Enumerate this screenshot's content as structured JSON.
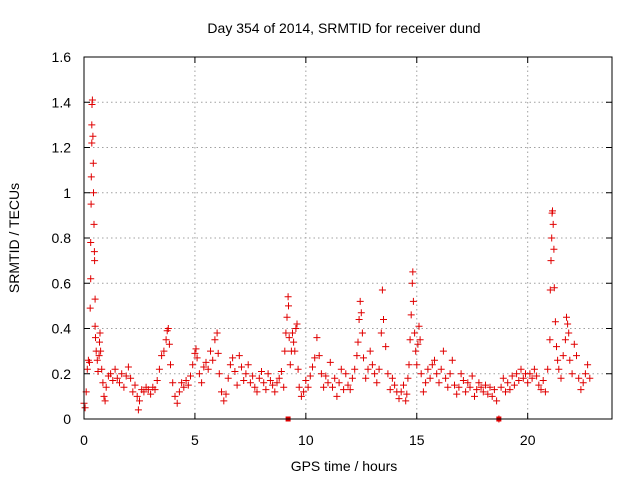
{
  "chart_data": {
    "type": "scatter",
    "title": "Day 354 of 2014, SRMTID for receiver dund",
    "xlabel": "GPS time / hours",
    "ylabel": "SRMTID / TECUs",
    "xlim": [
      0,
      23.8
    ],
    "ylim": [
      0,
      1.6
    ],
    "xticks": [
      0,
      5,
      10,
      15,
      20
    ],
    "xtick_labels": [
      "0",
      "5",
      "10",
      "15",
      "20"
    ],
    "yticks": [
      0,
      0.2,
      0.4,
      0.6,
      0.8,
      1,
      1.2,
      1.4,
      1.6
    ],
    "ytick_labels": [
      "0",
      "0.2",
      "0.4",
      "0.6",
      "0.8",
      "1",
      "1.2",
      "1.4",
      "1.6"
    ],
    "grid": true,
    "marker": "+",
    "marker_color": "#e00000",
    "series": [
      {
        "name": "SRMTID",
        "points": [
          [
            0.0,
            0.07
          ],
          [
            0.05,
            0.05
          ],
          [
            0.1,
            0.12
          ],
          [
            0.15,
            0.22
          ],
          [
            0.2,
            0.26
          ],
          [
            0.25,
            0.25
          ],
          [
            0.28,
            0.49
          ],
          [
            0.3,
            0.62
          ],
          [
            0.3,
            0.78
          ],
          [
            0.32,
            0.95
          ],
          [
            0.33,
            1.07
          ],
          [
            0.35,
            1.22
          ],
          [
            0.35,
            1.3
          ],
          [
            0.36,
            1.39
          ],
          [
            0.38,
            1.41
          ],
          [
            0.4,
            1.25
          ],
          [
            0.42,
            1.13
          ],
          [
            0.43,
            1.0
          ],
          [
            0.45,
            0.86
          ],
          [
            0.47,
            0.74
          ],
          [
            0.48,
            0.7
          ],
          [
            0.5,
            0.53
          ],
          [
            0.5,
            0.41
          ],
          [
            0.52,
            0.36
          ],
          [
            0.55,
            0.3
          ],
          [
            0.6,
            0.26
          ],
          [
            0.63,
            0.21
          ],
          [
            0.68,
            0.28
          ],
          [
            0.7,
            0.34
          ],
          [
            0.72,
            0.38
          ],
          [
            0.75,
            0.3
          ],
          [
            0.8,
            0.22
          ],
          [
            0.85,
            0.16
          ],
          [
            0.9,
            0.1
          ],
          [
            0.95,
            0.08
          ],
          [
            1.0,
            0.14
          ],
          [
            1.1,
            0.19
          ],
          [
            1.2,
            0.2
          ],
          [
            1.3,
            0.17
          ],
          [
            1.4,
            0.22
          ],
          [
            1.5,
            0.18
          ],
          [
            1.6,
            0.16
          ],
          [
            1.7,
            0.2
          ],
          [
            1.8,
            0.14
          ],
          [
            1.9,
            0.19
          ],
          [
            2.0,
            0.23
          ],
          [
            2.1,
            0.18
          ],
          [
            2.2,
            0.12
          ],
          [
            2.3,
            0.15
          ],
          [
            2.4,
            0.1
          ],
          [
            2.45,
            0.04
          ],
          [
            2.5,
            0.08
          ],
          [
            2.6,
            0.13
          ],
          [
            2.7,
            0.12
          ],
          [
            2.8,
            0.14
          ],
          [
            2.9,
            0.13
          ],
          [
            3.0,
            0.11
          ],
          [
            3.1,
            0.14
          ],
          [
            3.2,
            0.13
          ],
          [
            3.3,
            0.17
          ],
          [
            3.4,
            0.22
          ],
          [
            3.5,
            0.28
          ],
          [
            3.6,
            0.3
          ],
          [
            3.7,
            0.35
          ],
          [
            3.75,
            0.39
          ],
          [
            3.8,
            0.4
          ],
          [
            3.85,
            0.33
          ],
          [
            3.9,
            0.24
          ],
          [
            4.0,
            0.16
          ],
          [
            4.1,
            0.1
          ],
          [
            4.2,
            0.07
          ],
          [
            4.3,
            0.12
          ],
          [
            4.4,
            0.16
          ],
          [
            4.5,
            0.14
          ],
          [
            4.6,
            0.17
          ],
          [
            4.7,
            0.15
          ],
          [
            4.8,
            0.19
          ],
          [
            4.9,
            0.24
          ],
          [
            5.0,
            0.29
          ],
          [
            5.05,
            0.31
          ],
          [
            5.1,
            0.27
          ],
          [
            5.2,
            0.2
          ],
          [
            5.3,
            0.16
          ],
          [
            5.4,
            0.23
          ],
          [
            5.5,
            0.25
          ],
          [
            5.6,
            0.22
          ],
          [
            5.7,
            0.3
          ],
          [
            5.8,
            0.26
          ],
          [
            5.9,
            0.35
          ],
          [
            6.0,
            0.38
          ],
          [
            6.05,
            0.29
          ],
          [
            6.1,
            0.2
          ],
          [
            6.2,
            0.12
          ],
          [
            6.3,
            0.08
          ],
          [
            6.4,
            0.11
          ],
          [
            6.5,
            0.18
          ],
          [
            6.6,
            0.24
          ],
          [
            6.7,
            0.27
          ],
          [
            6.8,
            0.21
          ],
          [
            6.9,
            0.15
          ],
          [
            7.0,
            0.28
          ],
          [
            7.1,
            0.23
          ],
          [
            7.2,
            0.17
          ],
          [
            7.3,
            0.2
          ],
          [
            7.4,
            0.24
          ],
          [
            7.5,
            0.16
          ],
          [
            7.6,
            0.19
          ],
          [
            7.7,
            0.14
          ],
          [
            7.8,
            0.12
          ],
          [
            7.9,
            0.18
          ],
          [
            8.0,
            0.21
          ],
          [
            8.1,
            0.16
          ],
          [
            8.2,
            0.13
          ],
          [
            8.3,
            0.2
          ],
          [
            8.4,
            0.17
          ],
          [
            8.5,
            0.15
          ],
          [
            8.6,
            0.12
          ],
          [
            8.7,
            0.16
          ],
          [
            8.8,
            0.18
          ],
          [
            8.9,
            0.21
          ],
          [
            9.0,
            0.14
          ],
          [
            9.05,
            0.3
          ],
          [
            9.1,
            0.38
          ],
          [
            9.15,
            0.45
          ],
          [
            9.2,
            0.54
          ],
          [
            9.22,
            0.5
          ],
          [
            9.25,
            0.36
          ],
          [
            9.3,
            0.24
          ],
          [
            9.35,
            0.3
          ],
          [
            9.4,
            0.38
          ],
          [
            9.45,
            0.34
          ],
          [
            9.5,
            0.3
          ],
          [
            9.55,
            0.4
          ],
          [
            9.6,
            0.42
          ],
          [
            9.65,
            0.22
          ],
          [
            9.7,
            0.14
          ],
          [
            9.8,
            0.1
          ],
          [
            9.9,
            0.12
          ],
          [
            10.0,
            0.17
          ],
          [
            10.1,
            0.14
          ],
          [
            10.2,
            0.19
          ],
          [
            10.3,
            0.23
          ],
          [
            10.4,
            0.27
          ],
          [
            10.5,
            0.36
          ],
          [
            10.6,
            0.28
          ],
          [
            10.7,
            0.2
          ],
          [
            10.8,
            0.14
          ],
          [
            10.9,
            0.19
          ],
          [
            11.0,
            0.16
          ],
          [
            11.1,
            0.25
          ],
          [
            11.2,
            0.14
          ],
          [
            11.3,
            0.18
          ],
          [
            11.4,
            0.1
          ],
          [
            11.5,
            0.16
          ],
          [
            11.6,
            0.22
          ],
          [
            11.7,
            0.13
          ],
          [
            11.8,
            0.2
          ],
          [
            11.9,
            0.15
          ],
          [
            12.0,
            0.13
          ],
          [
            12.1,
            0.18
          ],
          [
            12.2,
            0.22
          ],
          [
            12.3,
            0.28
          ],
          [
            12.35,
            0.34
          ],
          [
            12.4,
            0.44
          ],
          [
            12.45,
            0.52
          ],
          [
            12.5,
            0.47
          ],
          [
            12.55,
            0.38
          ],
          [
            12.6,
            0.27
          ],
          [
            12.7,
            0.18
          ],
          [
            12.8,
            0.22
          ],
          [
            12.9,
            0.3
          ],
          [
            13.0,
            0.24
          ],
          [
            13.1,
            0.2
          ],
          [
            13.2,
            0.16
          ],
          [
            13.3,
            0.22
          ],
          [
            13.4,
            0.38
          ],
          [
            13.45,
            0.57
          ],
          [
            13.5,
            0.44
          ],
          [
            13.6,
            0.32
          ],
          [
            13.7,
            0.2
          ],
          [
            13.8,
            0.13
          ],
          [
            13.9,
            0.18
          ],
          [
            14.0,
            0.15
          ],
          [
            14.1,
            0.12
          ],
          [
            14.2,
            0.09
          ],
          [
            14.3,
            0.12
          ],
          [
            14.4,
            0.15
          ],
          [
            14.5,
            0.08
          ],
          [
            14.55,
            0.11
          ],
          [
            14.6,
            0.18
          ],
          [
            14.65,
            0.24
          ],
          [
            14.7,
            0.35
          ],
          [
            14.75,
            0.46
          ],
          [
            14.8,
            0.6
          ],
          [
            14.82,
            0.65
          ],
          [
            14.85,
            0.52
          ],
          [
            14.9,
            0.38
          ],
          [
            14.95,
            0.3
          ],
          [
            15.0,
            0.24
          ],
          [
            15.05,
            0.33
          ],
          [
            15.1,
            0.41
          ],
          [
            15.15,
            0.35
          ],
          [
            15.2,
            0.2
          ],
          [
            15.3,
            0.12
          ],
          [
            15.4,
            0.16
          ],
          [
            15.5,
            0.22
          ],
          [
            15.6,
            0.18
          ],
          [
            15.7,
            0.24
          ],
          [
            15.8,
            0.26
          ],
          [
            15.9,
            0.2
          ],
          [
            16.0,
            0.16
          ],
          [
            16.1,
            0.22
          ],
          [
            16.2,
            0.3
          ],
          [
            16.3,
            0.18
          ],
          [
            16.4,
            0.14
          ],
          [
            16.5,
            0.2
          ],
          [
            16.6,
            0.26
          ],
          [
            16.7,
            0.15
          ],
          [
            16.8,
            0.11
          ],
          [
            16.9,
            0.14
          ],
          [
            17.0,
            0.2
          ],
          [
            17.1,
            0.17
          ],
          [
            17.2,
            0.12
          ],
          [
            17.3,
            0.16
          ],
          [
            17.4,
            0.14
          ],
          [
            17.5,
            0.19
          ],
          [
            17.6,
            0.1
          ],
          [
            17.7,
            0.13
          ],
          [
            17.8,
            0.16
          ],
          [
            17.9,
            0.14
          ],
          [
            18.0,
            0.12
          ],
          [
            18.1,
            0.15
          ],
          [
            18.2,
            0.11
          ],
          [
            18.3,
            0.14
          ],
          [
            18.4,
            0.1
          ],
          [
            18.5,
            0.13
          ],
          [
            18.6,
            0.08
          ],
          [
            18.7,
            0.0
          ],
          [
            18.8,
            0.14
          ],
          [
            18.9,
            0.18
          ],
          [
            19.0,
            0.12
          ],
          [
            19.1,
            0.16
          ],
          [
            19.2,
            0.13
          ],
          [
            19.3,
            0.19
          ],
          [
            19.4,
            0.15
          ],
          [
            19.5,
            0.2
          ],
          [
            19.6,
            0.17
          ],
          [
            19.7,
            0.22
          ],
          [
            19.8,
            0.18
          ],
          [
            19.9,
            0.2
          ],
          [
            20.0,
            0.16
          ],
          [
            20.1,
            0.2
          ],
          [
            20.2,
            0.18
          ],
          [
            20.3,
            0.22
          ],
          [
            20.4,
            0.19
          ],
          [
            20.5,
            0.15
          ],
          [
            20.6,
            0.13
          ],
          [
            20.7,
            0.17
          ],
          [
            20.8,
            0.12
          ],
          [
            20.9,
            0.22
          ],
          [
            21.0,
            0.35
          ],
          [
            21.02,
            0.57
          ],
          [
            21.05,
            0.7
          ],
          [
            21.08,
            0.8
          ],
          [
            21.1,
            0.91
          ],
          [
            21.12,
            0.92
          ],
          [
            21.15,
            0.86
          ],
          [
            21.18,
            0.75
          ],
          [
            21.2,
            0.58
          ],
          [
            21.25,
            0.43
          ],
          [
            21.3,
            0.32
          ],
          [
            21.35,
            0.26
          ],
          [
            21.4,
            0.22
          ],
          [
            21.5,
            0.18
          ],
          [
            21.6,
            0.28
          ],
          [
            21.7,
            0.35
          ],
          [
            21.75,
            0.45
          ],
          [
            21.8,
            0.42
          ],
          [
            21.85,
            0.38
          ],
          [
            21.9,
            0.26
          ],
          [
            22.0,
            0.2
          ],
          [
            22.1,
            0.33
          ],
          [
            22.2,
            0.28
          ],
          [
            22.3,
            0.18
          ],
          [
            22.4,
            0.13
          ],
          [
            22.5,
            0.16
          ],
          [
            22.6,
            0.2
          ],
          [
            22.7,
            0.24
          ],
          [
            22.8,
            0.18
          ]
        ],
        "markers_square": [
          [
            9.2,
            0.0
          ],
          [
            18.7,
            0.0
          ]
        ]
      }
    ]
  }
}
